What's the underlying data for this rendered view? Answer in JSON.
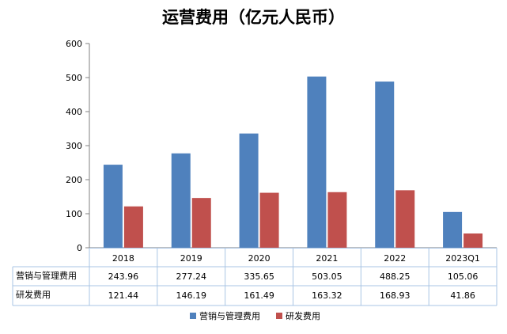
{
  "chart_data": {
    "type": "bar",
    "title": "运营费用（亿元人民币）",
    "categories": [
      "2018",
      "2019",
      "2020",
      "2021",
      "2022",
      "2023Q1"
    ],
    "series": [
      {
        "name": "营销与管理费用",
        "color": "#4F81BD",
        "values": [
          243.96,
          277.24,
          335.65,
          503.05,
          488.25,
          105.06
        ],
        "labels": [
          "243.96",
          "277.24",
          "335.65",
          "503.05",
          "488.25",
          "105.06"
        ]
      },
      {
        "name": "研发费用",
        "color": "#C0504D",
        "values": [
          121.44,
          146.19,
          161.49,
          163.32,
          168.93,
          41.86
        ],
        "labels": [
          "121.44",
          "146.19",
          "161.49",
          "163.32",
          "168.93",
          "41.86"
        ]
      }
    ],
    "ylim": [
      0,
      600
    ],
    "yticks": [
      "0",
      "100",
      "200",
      "300",
      "400",
      "500",
      "600"
    ],
    "grid": false,
    "data_table": true,
    "legend": "bottom"
  }
}
